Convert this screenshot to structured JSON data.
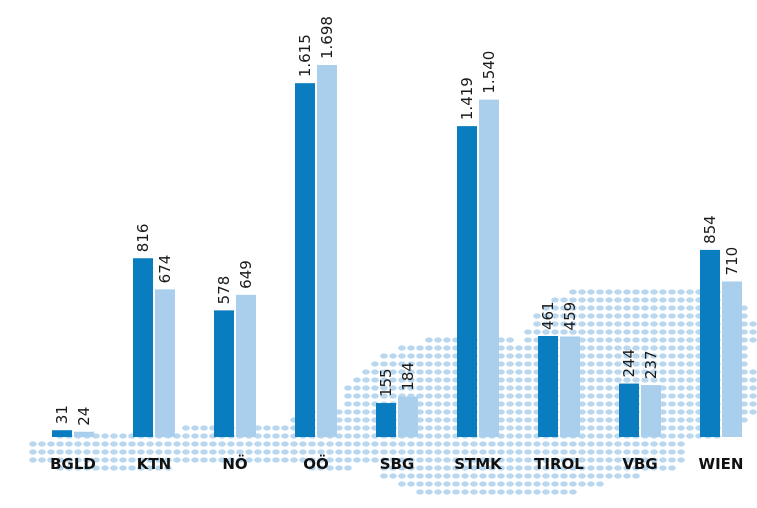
{
  "chart_data": {
    "type": "bar",
    "categories": [
      "BGLD",
      "KTN",
      "NÖ",
      "OÖ",
      "SBG",
      "STMK",
      "TIROL",
      "VBG",
      "WIEN"
    ],
    "series": [
      {
        "values": [
          31,
          816,
          578,
          1615,
          155,
          1419,
          461,
          244,
          854
        ],
        "labels": [
          "31",
          "816",
          "578",
          "1.615",
          "155",
          "1.419",
          "461",
          "244",
          "854"
        ]
      },
      {
        "values": [
          24,
          674,
          649,
          1698,
          184,
          1540,
          459,
          237,
          710
        ],
        "labels": [
          "24",
          "674",
          "649",
          "1.698",
          "184",
          "1.540",
          "459",
          "237",
          "710"
        ]
      }
    ],
    "title": "",
    "xlabel": "",
    "ylabel": "",
    "ylim": [
      0,
      1698
    ],
    "grid": false,
    "legend": "none",
    "colors": {
      "series_1": "#0a7dc1",
      "series_2": "#a9cfec",
      "map_dots": "#b9d8ef"
    }
  }
}
